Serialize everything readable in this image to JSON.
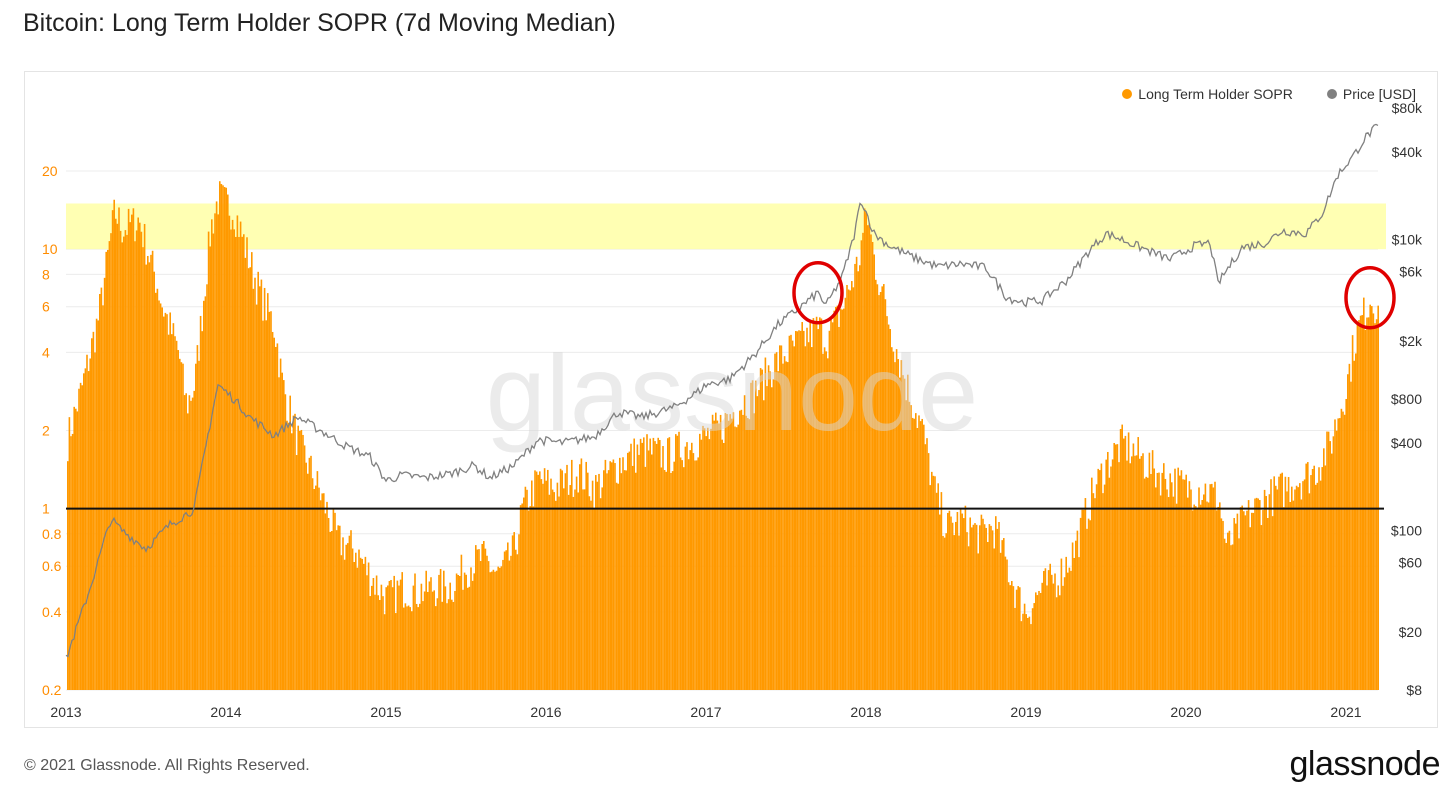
{
  "page": {
    "title": "Bitcoin: Long Term Holder SOPR (7d Moving Median)",
    "copyright": "© 2021 Glassnode. All Rights Reserved.",
    "logo_text": "glassnode",
    "watermark": "glassnode"
  },
  "colors": {
    "sopr": "#ff9900",
    "price": "#808080",
    "baseline": "#111111",
    "highlight_band": "#ffff99",
    "annotation": "#e00000",
    "left_axis": "#ff8c00",
    "right_axis": "#333333"
  },
  "chart_data": {
    "type": "bar",
    "title": "Bitcoin: Long Term Holder SOPR (7d Moving Median)",
    "legend": [
      {
        "name": "Long Term Holder SOPR",
        "color": "#ff9900"
      },
      {
        "name": "Price [USD]",
        "color": "#808080"
      }
    ],
    "legend_position": "top-right",
    "x_ticks": [
      "2013",
      "2014",
      "2015",
      "2016",
      "2017",
      "2018",
      "2019",
      "2020",
      "2021"
    ],
    "x_range": [
      2013.0,
      2021.2
    ],
    "left_axis": {
      "scale": "log",
      "range": [
        0.2,
        35
      ],
      "ticks": [
        "0.2",
        "0.4",
        "0.6",
        "0.8",
        "1",
        "2",
        "4",
        "6",
        "8",
        "10",
        "20"
      ]
    },
    "right_axis": {
      "scale": "log",
      "range": [
        8,
        80000
      ],
      "ticks": [
        "$8",
        "$20",
        "$60",
        "$100",
        "$400",
        "$800",
        "$2k",
        "$6k",
        "$10k",
        "$40k",
        "$80k"
      ]
    },
    "reference_line": 1,
    "highlight_band": [
      10,
      15
    ],
    "series": [
      {
        "name": "Long Term Holder SOPR",
        "type": "bar",
        "points": [
          [
            2013.0,
            1.8
          ],
          [
            2013.1,
            3.0
          ],
          [
            2013.2,
            5.5
          ],
          [
            2013.3,
            14
          ],
          [
            2013.35,
            12
          ],
          [
            2013.45,
            13
          ],
          [
            2013.55,
            8
          ],
          [
            2013.6,
            6
          ],
          [
            2013.7,
            4
          ],
          [
            2013.75,
            2.5
          ],
          [
            2013.8,
            3.0
          ],
          [
            2013.85,
            6
          ],
          [
            2013.9,
            12
          ],
          [
            2013.95,
            16
          ],
          [
            2014.05,
            14
          ],
          [
            2014.1,
            11
          ],
          [
            2014.2,
            7
          ],
          [
            2014.3,
            5
          ],
          [
            2014.35,
            3
          ],
          [
            2014.45,
            1.8
          ],
          [
            2014.55,
            1.3
          ],
          [
            2014.65,
            0.9
          ],
          [
            2014.7,
            0.75
          ],
          [
            2014.8,
            0.7
          ],
          [
            2014.9,
            0.55
          ],
          [
            2015.0,
            0.45
          ],
          [
            2015.1,
            0.5
          ],
          [
            2015.2,
            0.48
          ],
          [
            2015.3,
            0.5
          ],
          [
            2015.4,
            0.5
          ],
          [
            2015.5,
            0.6
          ],
          [
            2015.6,
            0.65
          ],
          [
            2015.7,
            0.55
          ],
          [
            2015.8,
            0.7
          ],
          [
            2015.85,
            1.0
          ],
          [
            2015.95,
            1.3
          ],
          [
            2016.05,
            1.2
          ],
          [
            2016.2,
            1.4
          ],
          [
            2016.3,
            1.2
          ],
          [
            2016.45,
            1.5
          ],
          [
            2016.6,
            1.7
          ],
          [
            2016.75,
            1.6
          ],
          [
            2016.9,
            1.8
          ],
          [
            2017.0,
            1.9
          ],
          [
            2017.1,
            2.1
          ],
          [
            2017.2,
            2.5
          ],
          [
            2017.3,
            2.8
          ],
          [
            2017.4,
            3.5
          ],
          [
            2017.5,
            4.0
          ],
          [
            2017.6,
            4.5
          ],
          [
            2017.7,
            5.0
          ],
          [
            2017.75,
            4.5
          ],
          [
            2017.85,
            6.0
          ],
          [
            2017.95,
            9.0
          ],
          [
            2018.0,
            14
          ],
          [
            2018.05,
            9
          ],
          [
            2018.15,
            5
          ],
          [
            2018.25,
            3
          ],
          [
            2018.35,
            2.0
          ],
          [
            2018.42,
            1.2
          ],
          [
            2018.5,
            0.85
          ],
          [
            2018.6,
            0.9
          ],
          [
            2018.7,
            0.8
          ],
          [
            2018.8,
            0.85
          ],
          [
            2018.9,
            0.55
          ],
          [
            2018.95,
            0.45
          ],
          [
            2019.0,
            0.4
          ],
          [
            2019.1,
            0.5
          ],
          [
            2019.2,
            0.55
          ],
          [
            2019.3,
            0.7
          ],
          [
            2019.4,
            1.1
          ],
          [
            2019.5,
            1.5
          ],
          [
            2019.6,
            1.8
          ],
          [
            2019.7,
            1.6
          ],
          [
            2019.8,
            1.4
          ],
          [
            2019.9,
            1.3
          ],
          [
            2020.0,
            1.2
          ],
          [
            2020.1,
            1.2
          ],
          [
            2020.2,
            1.1
          ],
          [
            2020.25,
            0.7
          ],
          [
            2020.35,
            0.9
          ],
          [
            2020.5,
            1.1
          ],
          [
            2020.6,
            1.2
          ],
          [
            2020.7,
            1.3
          ],
          [
            2020.8,
            1.4
          ],
          [
            2020.9,
            1.8
          ],
          [
            2021.0,
            3.0
          ],
          [
            2021.05,
            4.5
          ],
          [
            2021.1,
            5.5
          ],
          [
            2021.15,
            6.5
          ],
          [
            2021.2,
            6.0
          ]
        ]
      },
      {
        "name": "Price [USD]",
        "type": "line",
        "points": [
          [
            2013.0,
            13
          ],
          [
            2013.15,
            40
          ],
          [
            2013.28,
            120
          ],
          [
            2013.35,
            100
          ],
          [
            2013.5,
            75
          ],
          [
            2013.65,
            110
          ],
          [
            2013.8,
            140
          ],
          [
            2013.92,
            700
          ],
          [
            2013.95,
            1000
          ],
          [
            2014.05,
            800
          ],
          [
            2014.15,
            600
          ],
          [
            2014.3,
            450
          ],
          [
            2014.45,
            600
          ],
          [
            2014.6,
            480
          ],
          [
            2014.75,
            380
          ],
          [
            2014.9,
            320
          ],
          [
            2015.0,
            220
          ],
          [
            2015.1,
            240
          ],
          [
            2015.25,
            230
          ],
          [
            2015.4,
            245
          ],
          [
            2015.55,
            280
          ],
          [
            2015.65,
            230
          ],
          [
            2015.8,
            280
          ],
          [
            2015.95,
            420
          ],
          [
            2016.1,
            400
          ],
          [
            2016.3,
            440
          ],
          [
            2016.45,
            650
          ],
          [
            2016.6,
            600
          ],
          [
            2016.8,
            700
          ],
          [
            2016.95,
            900
          ],
          [
            2017.0,
            1000
          ],
          [
            2017.15,
            1100
          ],
          [
            2017.3,
            1600
          ],
          [
            2017.45,
            2600
          ],
          [
            2017.6,
            3500
          ],
          [
            2017.7,
            4300
          ],
          [
            2017.75,
            3500
          ],
          [
            2017.85,
            5500
          ],
          [
            2017.92,
            10000
          ],
          [
            2017.97,
            19000
          ],
          [
            2018.05,
            11000
          ],
          [
            2018.15,
            9000
          ],
          [
            2018.3,
            7500
          ],
          [
            2018.45,
            6500
          ],
          [
            2018.6,
            6800
          ],
          [
            2018.75,
            6400
          ],
          [
            2018.88,
            4000
          ],
          [
            2018.98,
            3700
          ],
          [
            2019.1,
            3800
          ],
          [
            2019.25,
            5200
          ],
          [
            2019.4,
            8500
          ],
          [
            2019.5,
            11000
          ],
          [
            2019.6,
            10000
          ],
          [
            2019.75,
            8500
          ],
          [
            2019.9,
            7300
          ],
          [
            2020.05,
            9000
          ],
          [
            2020.15,
            9500
          ],
          [
            2020.2,
            5000
          ],
          [
            2020.35,
            8800
          ],
          [
            2020.5,
            9500
          ],
          [
            2020.6,
            11500
          ],
          [
            2020.75,
            11000
          ],
          [
            2020.85,
            15000
          ],
          [
            2020.95,
            28000
          ],
          [
            2021.05,
            38000
          ],
          [
            2021.12,
            50000
          ],
          [
            2021.18,
            58000
          ]
        ]
      }
    ],
    "annotations": [
      {
        "type": "circle",
        "at": [
          2017.7,
          4300
        ],
        "axis": "right"
      },
      {
        "type": "circle",
        "at": [
          2021.15,
          6.5
        ],
        "axis": "left"
      }
    ]
  }
}
